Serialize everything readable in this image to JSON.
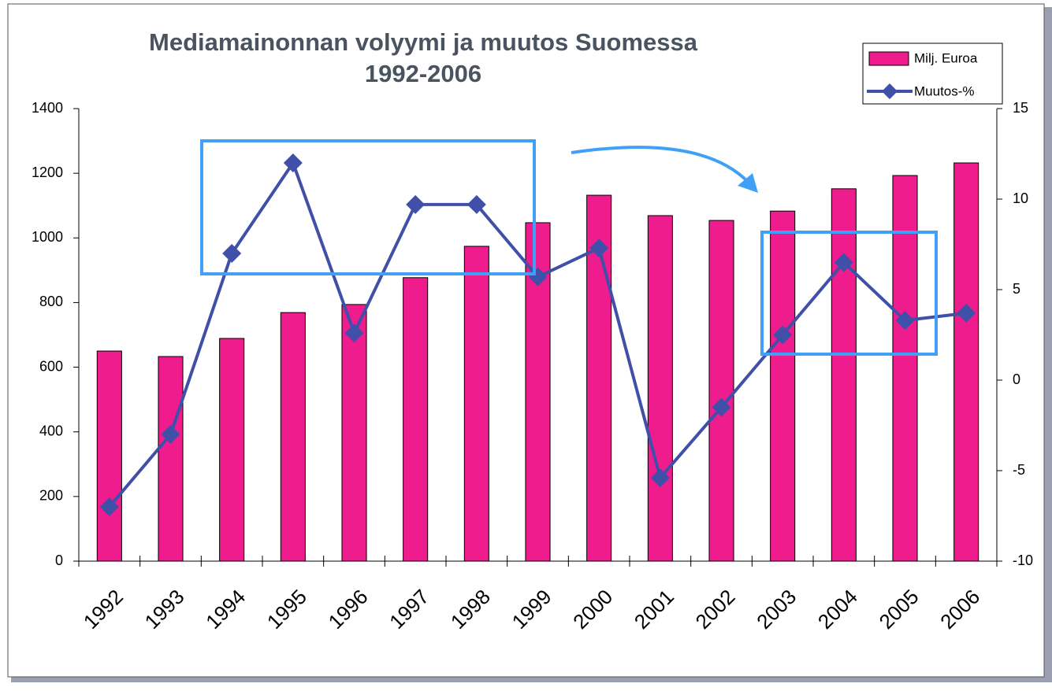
{
  "chart_data": {
    "type": "bar",
    "title": "Mediamainonnan volyymi ja muutos Suomessa",
    "subtitle": "1992-2006",
    "categories": [
      "1992",
      "1993",
      "1994",
      "1995",
      "1996",
      "1997",
      "1998",
      "1999",
      "2000",
      "2001",
      "2002",
      "2003",
      "2004",
      "2005",
      "2006"
    ],
    "series": [
      {
        "name": "Milj. Euroa",
        "type": "bar",
        "color": "#ee1c8c",
        "values": [
          650,
          633,
          689,
          769,
          794,
          877,
          974,
          1047,
          1132,
          1069,
          1054,
          1083,
          1152,
          1193,
          1232
        ]
      },
      {
        "name": "Muutos-%",
        "type": "line",
        "axis": "y2",
        "color": "#4050a8",
        "values": [
          -7.0,
          -3.0,
          7.0,
          12.0,
          2.6,
          9.7,
          9.7,
          5.7,
          7.3,
          -5.4,
          -1.5,
          2.5,
          6.5,
          3.3,
          3.7
        ]
      }
    ],
    "ylim": [
      0,
      1400
    ],
    "yticks": [
      0,
      200,
      400,
      600,
      800,
      1000,
      1200,
      1400
    ],
    "y2lim": [
      -10,
      15
    ],
    "y2ticks": [
      -10,
      -5,
      0,
      5,
      10,
      15
    ],
    "legend": "top-right",
    "grid": false
  }
}
